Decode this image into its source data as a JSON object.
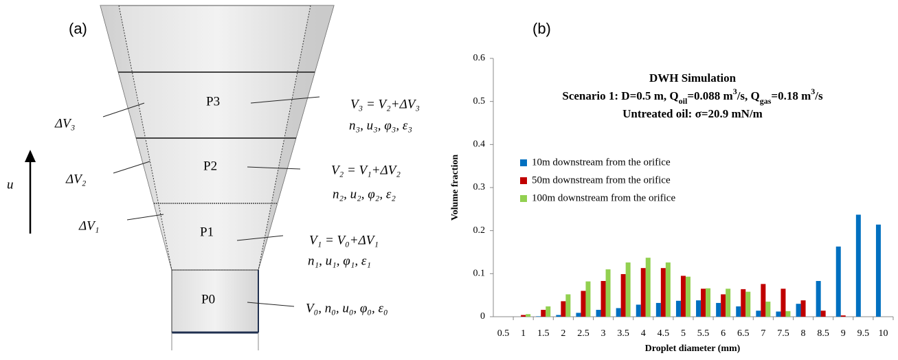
{
  "panel_labels": [
    "(a)",
    "(b)"
  ],
  "diagram": {
    "direction_label": "u",
    "parcels": [
      {
        "label": "P3",
        "equation": "V₃ = V₂+ΔV₃",
        "properties": "n₃, u₃, φ₃, ε₃",
        "increment": "ΔV₃"
      },
      {
        "label": "P2",
        "equation": "V₂ = V₁+ΔV₂",
        "properties": "n₂, u₂, φ₂, ε₂",
        "increment": "ΔV₂"
      },
      {
        "label": "P1",
        "equation": "V₁ = V₀+ΔV₁",
        "properties": "n₁, u₁, φ₁, ε₁",
        "increment": "ΔV₁"
      },
      {
        "label": "P0",
        "equation": "V₀, n₀, u₀, φ₀, ε₀"
      }
    ]
  },
  "chart_data": {
    "type": "bar",
    "title_lines": [
      [
        {
          "text": "DWH  Simulation"
        }
      ],
      [
        {
          "text": "Scenario 1: D=0.5 m, Q"
        },
        {
          "sub": "oil"
        },
        {
          "text": "=0.088 m"
        },
        {
          "sup": "3"
        },
        {
          "text": "/s, Q"
        },
        {
          "sub": "gas"
        },
        {
          "text": "=0.18 m"
        },
        {
          "sup": "3"
        },
        {
          "text": "/s"
        }
      ],
      [
        {
          "text": "Untreated oil: σ=20.9 mN/m"
        }
      ]
    ],
    "x_label": "Droplet diameter (mm)",
    "y_label": "Volume fraction",
    "categories": [
      "0.5",
      "1",
      "1.5",
      "2",
      "2.5",
      "3",
      "3.5",
      "4",
      "4.5",
      "5",
      "5.5",
      "6",
      "6.5",
      "7",
      "7.5",
      "8",
      "8.5",
      "9",
      "9.5",
      "10"
    ],
    "series": [
      {
        "name": "10m  downstream from the orifice",
        "color": "#0070c0",
        "values": [
          0,
          0,
          0.001,
          0.004,
          0.009,
          0.016,
          0.02,
          0.028,
          0.032,
          0.037,
          0.038,
          0.032,
          0.024,
          0.014,
          0.012,
          0.03,
          0.083,
          0.163,
          0.237,
          0.214
        ]
      },
      {
        "name": "50m  downstream from the orifice",
        "color": "#c00000",
        "values": [
          0,
          0.004,
          0.016,
          0.036,
          0.06,
          0.083,
          0.099,
          0.113,
          0.113,
          0.095,
          0.065,
          0.052,
          0.064,
          0.076,
          0.065,
          0.038,
          0.014,
          0.003,
          0,
          0
        ]
      },
      {
        "name": "100m  downstream from the orifice",
        "color": "#92d050",
        "values": [
          0,
          0.006,
          0.024,
          0.052,
          0.082,
          0.11,
          0.126,
          0.137,
          0.126,
          0.093,
          0.066,
          0.065,
          0.058,
          0.035,
          0.013,
          0,
          0,
          0,
          0,
          0
        ]
      }
    ],
    "ylim": [
      0,
      0.6
    ],
    "yticks": [
      0,
      0.1,
      0.2,
      0.3,
      0.4,
      0.5,
      0.6
    ],
    "grid": false
  }
}
